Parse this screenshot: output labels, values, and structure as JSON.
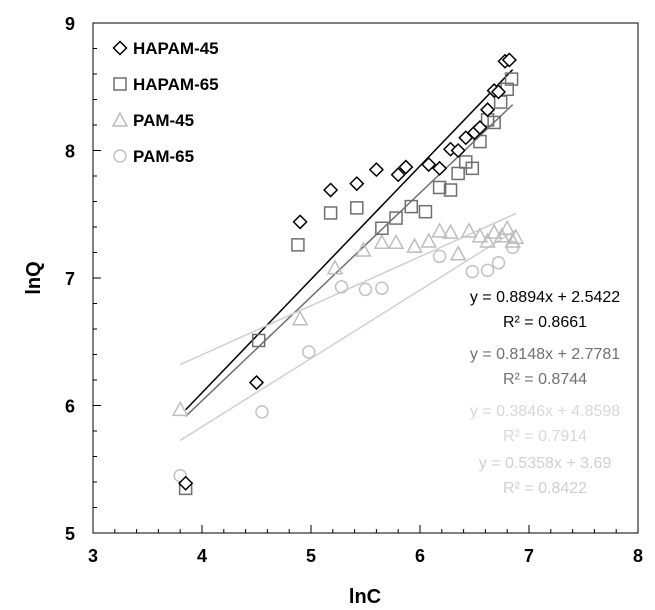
{
  "chart_data": {
    "type": "scatter",
    "xlabel": "lnC",
    "ylabel": "lnQ",
    "xlim": [
      3,
      8
    ],
    "ylim": [
      5,
      9
    ],
    "x_ticks": [
      "3",
      "4",
      "5",
      "6",
      "7",
      "8"
    ],
    "y_ticks": [
      "5",
      "6",
      "7",
      "8",
      "9"
    ],
    "legend_position": "top-left",
    "series": [
      {
        "name": "HAPAM-45",
        "marker": "diamond",
        "color": "#000000",
        "points": [
          [
            3.85,
            5.39
          ],
          [
            4.5,
            6.18
          ],
          [
            4.9,
            7.44
          ],
          [
            5.18,
            7.69
          ],
          [
            5.42,
            7.74
          ],
          [
            5.6,
            7.85
          ],
          [
            5.8,
            7.81
          ],
          [
            5.87,
            7.87
          ],
          [
            6.08,
            7.89
          ],
          [
            6.18,
            7.86
          ],
          [
            6.28,
            8.01
          ],
          [
            6.35,
            8.0
          ],
          [
            6.42,
            8.1
          ],
          [
            6.5,
            8.14
          ],
          [
            6.55,
            8.18
          ],
          [
            6.62,
            8.32
          ],
          [
            6.68,
            8.47
          ],
          [
            6.72,
            8.46
          ],
          [
            6.78,
            8.7
          ],
          [
            6.82,
            8.71
          ]
        ],
        "trend": {
          "slope": 0.8894,
          "intercept": 2.5422,
          "x_range": [
            3.85,
            6.85
          ],
          "color": "#000000"
        },
        "equation": "y = 0.8894x + 2.5422",
        "r2": "R² = 0.8661"
      },
      {
        "name": "HAPAM-65",
        "marker": "square",
        "color": "#6e6e6e",
        "points": [
          [
            3.85,
            5.35
          ],
          [
            4.52,
            6.51
          ],
          [
            4.88,
            7.26
          ],
          [
            5.18,
            7.51
          ],
          [
            5.42,
            7.55
          ],
          [
            5.65,
            7.39
          ],
          [
            5.78,
            7.47
          ],
          [
            5.92,
            7.56
          ],
          [
            6.05,
            7.52
          ],
          [
            6.18,
            7.71
          ],
          [
            6.28,
            7.69
          ],
          [
            6.35,
            7.82
          ],
          [
            6.42,
            7.91
          ],
          [
            6.48,
            7.86
          ],
          [
            6.55,
            8.07
          ],
          [
            6.62,
            8.24
          ],
          [
            6.68,
            8.22
          ],
          [
            6.74,
            8.38
          ],
          [
            6.8,
            8.48
          ],
          [
            6.84,
            8.56
          ]
        ],
        "trend": {
          "slope": 0.8148,
          "intercept": 2.7781,
          "x_range": [
            3.85,
            6.85
          ],
          "color": "#707070"
        },
        "equation": "y = 0.8148x + 2.7781",
        "r2": "R² = 0.8744"
      },
      {
        "name": "PAM-45",
        "marker": "triangle",
        "color": "#bdbdbd",
        "points": [
          [
            3.8,
            5.97
          ],
          [
            4.9,
            6.68
          ],
          [
            5.22,
            7.08
          ],
          [
            5.48,
            7.22
          ],
          [
            5.65,
            7.28
          ],
          [
            5.78,
            7.28
          ],
          [
            5.95,
            7.25
          ],
          [
            6.08,
            7.29
          ],
          [
            6.18,
            7.37
          ],
          [
            6.28,
            7.36
          ],
          [
            6.35,
            7.19
          ],
          [
            6.45,
            7.37
          ],
          [
            6.55,
            7.33
          ],
          [
            6.62,
            7.29
          ],
          [
            6.68,
            7.36
          ],
          [
            6.75,
            7.33
          ],
          [
            6.8,
            7.39
          ],
          [
            6.85,
            7.29
          ],
          [
            6.88,
            7.32
          ]
        ],
        "trend": {
          "slope": 0.3846,
          "intercept": 4.8598,
          "x_range": [
            3.8,
            6.88
          ],
          "color": "#cfcfcf"
        },
        "equation": "y = 0.3846x + 4.8598",
        "r2": "R² = 0.7914"
      },
      {
        "name": "PAM-65",
        "marker": "circle",
        "color": "#c2c2c2",
        "points": [
          [
            3.8,
            5.45
          ],
          [
            4.55,
            5.95
          ],
          [
            4.98,
            6.42
          ],
          [
            5.28,
            6.93
          ],
          [
            5.5,
            6.91
          ],
          [
            5.65,
            6.92
          ],
          [
            6.18,
            7.17
          ],
          [
            6.48,
            7.05
          ],
          [
            6.62,
            7.06
          ],
          [
            6.72,
            7.12
          ],
          [
            6.85,
            7.24
          ]
        ],
        "trend": {
          "slope": 0.5358,
          "intercept": 3.69,
          "x_range": [
            3.8,
            6.88
          ],
          "color": "#d0d0d0"
        },
        "equation": "y = 0.5358x + 3.69",
        "r2": "R² = 0.8422"
      }
    ]
  }
}
